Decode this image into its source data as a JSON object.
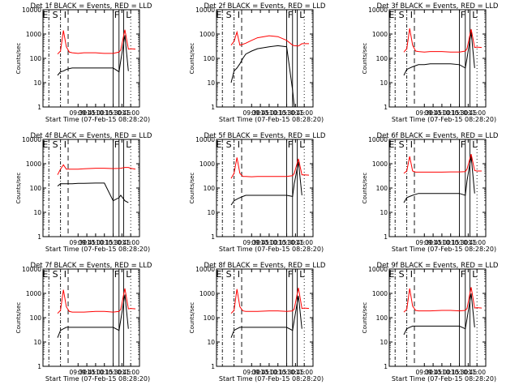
{
  "figure": {
    "xlabel": "Start Time (07-Feb-15 08:28:20)",
    "ylabel": "Counts/sec",
    "xticks": [
      "09:30",
      "09:45",
      "10:00",
      "10:15",
      "10:30",
      "10:45",
      "11:00"
    ],
    "yticks": [
      "1",
      "10",
      "100",
      "1000",
      "10000"
    ],
    "ylog": true,
    "xlim_minutes": [
      510,
      675
    ],
    "ylim": [
      1,
      10000
    ],
    "colors": {
      "events": "#000000",
      "lld": "#ff0000",
      "axes": "#000000"
    }
  },
  "chart_data": [
    {
      "type": "line",
      "title": "Det 1f BLACK = Events, RED = LLD",
      "flags": [
        "E",
        "S",
        "I",
        "F",
        "L"
      ],
      "x": [
        510,
        530,
        535,
        540,
        545,
        550,
        555,
        560,
        570,
        580,
        600,
        615,
        630,
        640,
        643,
        650,
        656,
        660,
        668,
        675
      ],
      "series": [
        {
          "name": "Events",
          "color": "#000000",
          "values": [
            null,
            null,
            20,
            28,
            30,
            35,
            38,
            40,
            40,
            40,
            40,
            40,
            40,
            28,
            80,
            900,
            30,
            null,
            null,
            null
          ]
        },
        {
          "name": "LLD",
          "color": "#ff0000",
          "values": [
            null,
            null,
            150,
            200,
            1400,
            300,
            180,
            170,
            160,
            170,
            170,
            160,
            160,
            180,
            220,
            1500,
            240,
            250,
            240,
            null
          ]
        }
      ]
    },
    {
      "type": "line",
      "title": "Det 2f BLACK = Events, RED = LLD",
      "flags": [
        "E",
        "S",
        "I",
        "F",
        "L"
      ],
      "x": [
        510,
        530,
        535,
        540,
        545,
        550,
        555,
        560,
        570,
        580,
        600,
        615,
        630,
        640,
        643,
        650,
        656,
        660,
        668,
        675
      ],
      "series": [
        {
          "name": "Events",
          "color": "#000000",
          "values": [
            null,
            null,
            10,
            30,
            40,
            60,
            100,
            150,
            200,
            250,
            300,
            330,
            300,
            5,
            1,
            1,
            1,
            null,
            null,
            null
          ]
        },
        {
          "name": "LLD",
          "color": "#ff0000",
          "values": [
            null,
            null,
            350,
            500,
            1200,
            350,
            380,
            420,
            550,
            700,
            850,
            780,
            550,
            350,
            330,
            320,
            400,
            400,
            400,
            null
          ]
        }
      ]
    },
    {
      "type": "line",
      "title": "Det 3f BLACK = Events, RED = LLD",
      "flags": [
        "E",
        "S",
        "I",
        "F",
        "L"
      ],
      "x": [
        510,
        530,
        535,
        540,
        545,
        550,
        555,
        560,
        570,
        580,
        600,
        615,
        630,
        640,
        643,
        650,
        656,
        660,
        668,
        675
      ],
      "series": [
        {
          "name": "Events",
          "color": "#000000",
          "values": [
            null,
            null,
            20,
            35,
            40,
            45,
            50,
            55,
            55,
            60,
            60,
            60,
            55,
            40,
            100,
            1200,
            40,
            null,
            null,
            null
          ]
        },
        {
          "name": "LLD",
          "color": "#ff0000",
          "values": [
            null,
            null,
            180,
            250,
            1700,
            350,
            200,
            190,
            180,
            190,
            190,
            180,
            180,
            200,
            250,
            1600,
            280,
            290,
            280,
            null
          ]
        }
      ]
    },
    {
      "type": "line",
      "title": "Det 4f BLACK = Events, RED = LLD",
      "flags": [
        "E",
        "S",
        "I",
        "F",
        "L"
      ],
      "x": [
        510,
        530,
        535,
        540,
        545,
        550,
        555,
        560,
        570,
        580,
        600,
        615,
        630,
        640,
        643,
        650,
        656,
        660,
        668,
        675
      ],
      "series": [
        {
          "name": "Events",
          "color": "#000000",
          "values": [
            null,
            null,
            120,
            150,
            150,
            150,
            150,
            150,
            155,
            155,
            160,
            160,
            30,
            40,
            50,
            30,
            25,
            null,
            null,
            null
          ]
        },
        {
          "name": "LLD",
          "color": "#ff0000",
          "values": [
            null,
            null,
            350,
            600,
            900,
            600,
            600,
            600,
            600,
            620,
            650,
            650,
            630,
            640,
            650,
            700,
            700,
            650,
            600,
            null
          ]
        }
      ]
    },
    {
      "type": "line",
      "title": "Det 5f BLACK = Events, RED = LLD",
      "flags": [
        "E",
        "S",
        "I",
        "F",
        "L"
      ],
      "x": [
        510,
        530,
        535,
        540,
        545,
        550,
        555,
        560,
        570,
        580,
        600,
        615,
        630,
        640,
        643,
        650,
        656,
        660,
        668,
        675
      ],
      "series": [
        {
          "name": "Events",
          "color": "#000000",
          "values": [
            null,
            null,
            20,
            30,
            35,
            40,
            45,
            50,
            50,
            50,
            50,
            50,
            50,
            45,
            150,
            1200,
            50,
            null,
            null,
            null
          ]
        },
        {
          "name": "LLD",
          "color": "#ff0000",
          "values": [
            null,
            null,
            250,
            400,
            1800,
            400,
            300,
            300,
            290,
            300,
            300,
            300,
            300,
            320,
            400,
            1600,
            350,
            350,
            340,
            null
          ]
        }
      ]
    },
    {
      "type": "line",
      "title": "Det 6f BLACK = Events, RED = LLD",
      "flags": [
        "E",
        "S",
        "I",
        "F",
        "L"
      ],
      "x": [
        510,
        530,
        535,
        540,
        545,
        550,
        555,
        560,
        570,
        580,
        600,
        615,
        630,
        640,
        643,
        650,
        656,
        660,
        668,
        675
      ],
      "series": [
        {
          "name": "Events",
          "color": "#000000",
          "values": [
            null,
            null,
            25,
            40,
            45,
            50,
            55,
            60,
            60,
            60,
            60,
            60,
            60,
            50,
            200,
            2000,
            60,
            null,
            null,
            null
          ]
        },
        {
          "name": "LLD",
          "color": "#ff0000",
          "values": [
            null,
            null,
            400,
            500,
            2000,
            500,
            450,
            450,
            450,
            450,
            450,
            460,
            460,
            470,
            600,
            2500,
            520,
            500,
            500,
            null
          ]
        }
      ]
    },
    {
      "type": "line",
      "title": "Det 7f BLACK = Events, RED = LLD",
      "flags": [
        "E",
        "S",
        "I",
        "F",
        "L"
      ],
      "x": [
        510,
        530,
        535,
        540,
        545,
        550,
        555,
        560,
        570,
        580,
        600,
        615,
        630,
        640,
        643,
        650,
        656,
        660,
        668,
        675
      ],
      "series": [
        {
          "name": "Events",
          "color": "#000000",
          "values": [
            null,
            null,
            15,
            30,
            35,
            40,
            40,
            40,
            40,
            40,
            40,
            40,
            40,
            30,
            80,
            900,
            35,
            null,
            null,
            null
          ]
        },
        {
          "name": "LLD",
          "color": "#ff0000",
          "values": [
            null,
            null,
            150,
            200,
            1400,
            280,
            180,
            170,
            170,
            170,
            180,
            180,
            170,
            180,
            220,
            1600,
            230,
            240,
            230,
            null
          ]
        }
      ]
    },
    {
      "type": "line",
      "title": "Det 8f BLACK = Events, RED = LLD",
      "flags": [
        "E",
        "S",
        "I",
        "F",
        "L"
      ],
      "x": [
        510,
        530,
        535,
        540,
        545,
        550,
        555,
        560,
        570,
        580,
        600,
        615,
        630,
        640,
        643,
        650,
        656,
        660,
        668,
        675
      ],
      "series": [
        {
          "name": "Events",
          "color": "#000000",
          "values": [
            null,
            null,
            15,
            30,
            35,
            40,
            40,
            40,
            40,
            40,
            40,
            40,
            40,
            30,
            80,
            800,
            35,
            null,
            null,
            null
          ]
        },
        {
          "name": "LLD",
          "color": "#ff0000",
          "values": [
            null,
            null,
            150,
            200,
            1500,
            280,
            190,
            180,
            180,
            180,
            190,
            190,
            180,
            190,
            230,
            1700,
            240,
            250,
            240,
            null
          ]
        }
      ]
    },
    {
      "type": "line",
      "title": "Det 9f BLACK = Events, RED = LLD",
      "flags": [
        "E",
        "S",
        "I",
        "F",
        "L"
      ],
      "x": [
        510,
        530,
        535,
        540,
        545,
        550,
        555,
        560,
        570,
        580,
        600,
        615,
        630,
        640,
        643,
        650,
        656,
        660,
        668,
        675
      ],
      "series": [
        {
          "name": "Events",
          "color": "#000000",
          "values": [
            null,
            null,
            20,
            35,
            40,
            45,
            45,
            45,
            45,
            45,
            45,
            45,
            45,
            35,
            90,
            1000,
            40,
            null,
            null,
            null
          ]
        },
        {
          "name": "LLD",
          "color": "#ff0000",
          "values": [
            null,
            null,
            170,
            220,
            1600,
            300,
            200,
            190,
            190,
            190,
            200,
            200,
            190,
            200,
            240,
            1800,
            250,
            260,
            250,
            null
          ]
        }
      ]
    }
  ]
}
